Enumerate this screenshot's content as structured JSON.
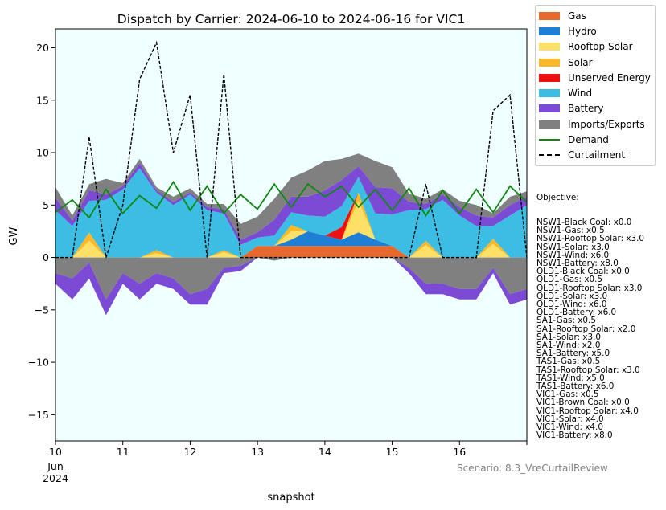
{
  "chart_data": {
    "type": "area",
    "title": "Dispatch by Carrier: 2024-06-10 to 2024-06-16 for VIC1",
    "xlabel": "snapshot",
    "ylabel": "GW",
    "xlim": [
      10,
      17
    ],
    "ylim": [
      -17.5,
      21.8
    ],
    "x_ticks": [
      10,
      11,
      12,
      13,
      14,
      15,
      16,
      17
    ],
    "x_tick_labels": [
      "10",
      "11",
      "12",
      "13",
      "14",
      "15",
      "16",
      ""
    ],
    "x_tick_sublabels": [
      "Jun",
      "2024"
    ],
    "y_ticks": [
      -15,
      -10,
      -5,
      0,
      5,
      10,
      15,
      20
    ],
    "y_tick_labels": [
      "−15",
      "−10",
      "−5",
      "0",
      "5",
      "10",
      "15",
      "20"
    ],
    "legend_position": "outside-top-right",
    "background_color": "#f0ffff",
    "x": [
      10.0,
      10.25,
      10.5,
      10.75,
      11.0,
      11.25,
      11.5,
      11.75,
      12.0,
      12.25,
      12.5,
      12.75,
      13.0,
      13.25,
      13.5,
      13.75,
      14.0,
      14.25,
      14.5,
      14.75,
      15.0,
      15.25,
      15.5,
      15.75,
      16.0,
      16.25,
      16.5,
      16.75,
      17.0
    ],
    "series": [
      {
        "name": "Gas",
        "color": "#e8692e",
        "values": [
          0,
          0,
          0,
          0,
          0,
          0,
          0,
          0,
          0,
          0,
          0,
          0,
          1.1,
          1.1,
          1.1,
          1.1,
          1.1,
          1.1,
          1.1,
          1.1,
          1.1,
          0,
          0,
          0,
          0,
          0,
          0,
          0,
          0
        ]
      },
      {
        "name": "Hydro",
        "color": "#1f7fd4",
        "values": [
          0,
          0,
          0,
          0,
          0,
          0,
          0,
          0,
          0,
          0,
          0,
          0,
          0,
          0,
          0.6,
          1.4,
          1.0,
          0.6,
          1.3,
          0.6,
          0,
          0,
          0,
          0,
          0,
          0,
          0,
          0,
          0
        ]
      },
      {
        "name": "Rooftop Solar",
        "color": "#ffe066",
        "values": [
          0,
          0,
          1.6,
          0,
          0,
          0,
          0.4,
          0,
          0,
          0,
          0.5,
          0,
          0,
          0,
          0.8,
          0,
          0,
          0,
          3.0,
          0,
          0,
          0,
          1.2,
          0,
          0,
          0,
          1.3,
          0,
          0
        ]
      },
      {
        "name": "Solar",
        "color": "#ffb828",
        "values": [
          0,
          0,
          0.8,
          0,
          0,
          0,
          0.3,
          0,
          0,
          0,
          0.2,
          0,
          0,
          0,
          0.6,
          0,
          0,
          0,
          0.8,
          0,
          0,
          0,
          0.4,
          0,
          0,
          0,
          0.5,
          0,
          0
        ]
      },
      {
        "name": "Unserved Energy",
        "color": "#ee1111",
        "values": [
          0,
          0,
          0,
          0,
          0,
          0,
          0,
          0,
          0,
          0,
          0,
          0,
          0,
          0,
          0,
          0,
          0,
          1.2,
          0,
          0,
          0,
          0,
          0,
          0,
          0,
          0,
          0,
          0,
          0
        ]
      },
      {
        "name": "Wind",
        "color": "#3bbde4",
        "values": [
          4.5,
          3.0,
          3.0,
          5.5,
          6.5,
          8.5,
          5.5,
          5.0,
          6.0,
          4.5,
          3.5,
          1.2,
          0.8,
          1.0,
          1.2,
          1.5,
          1.8,
          2.0,
          1.5,
          2.5,
          3.0,
          4.5,
          3.0,
          5.5,
          4.0,
          3.0,
          1.2,
          4.0,
          5.0
        ]
      },
      {
        "name": "Battery",
        "color": "#7b4bd6",
        "values": [
          1.2,
          0.5,
          1.0,
          0.5,
          0.3,
          0.5,
          0.2,
          0.3,
          0.2,
          0.3,
          0.4,
          0.5,
          0.5,
          1.5,
          1.5,
          1.8,
          2.5,
          2.5,
          1.0,
          2.5,
          2.5,
          0.8,
          0.5,
          0.5,
          0.8,
          1.0,
          0.8,
          1.0,
          0.8
        ]
      },
      {
        "name": "Imports/Exports",
        "color": "#808080",
        "values": [
          1.0,
          0.5,
          0.6,
          1.5,
          0.3,
          0.4,
          0.3,
          0.5,
          0.4,
          0.3,
          0.5,
          1.5,
          1.5,
          2.0,
          1.8,
          2.5,
          2.8,
          2.0,
          1.2,
          2.5,
          2.0,
          0.8,
          0.5,
          0.5,
          0.6,
          1.0,
          0.4,
          0.8,
          0.5
        ]
      }
    ],
    "negative_series": [
      {
        "name": "Imports/Exports",
        "color": "#808080",
        "values": [
          -1.5,
          -2.0,
          -0.5,
          -4.0,
          -1.5,
          -2.5,
          -1.5,
          -2.0,
          -3.5,
          -3.0,
          -1.0,
          -0.8,
          0,
          -0.3,
          0,
          0,
          0,
          0,
          0,
          0,
          0,
          -1.0,
          -2.5,
          -2.5,
          -3.0,
          -3.0,
          -1.0,
          -3.5,
          -3.0
        ]
      },
      {
        "name": "Battery",
        "color": "#7b4bd6",
        "values": [
          -1.0,
          -2.0,
          -1.5,
          -1.5,
          -1.0,
          -1.5,
          -1.0,
          -1.0,
          -1.0,
          -1.5,
          -0.5,
          -0.5,
          0,
          0,
          0,
          0,
          0,
          0,
          0,
          0,
          0,
          -0.5,
          -1.0,
          -1.0,
          -1.0,
          -1.0,
          -0.5,
          -1.0,
          -1.0
        ]
      }
    ],
    "lines": [
      {
        "name": "Demand",
        "color": "#118811",
        "dash": "solid",
        "values": [
          4.3,
          5.5,
          3.8,
          6.5,
          4.2,
          5.9,
          4.7,
          7.2,
          4.5,
          6.8,
          4.2,
          6.0,
          4.6,
          7.0,
          4.8,
          7.0,
          5.8,
          6.8,
          4.8,
          6.5,
          4.5,
          6.6,
          4.0,
          6.4,
          4.2,
          6.5,
          4.3,
          6.8,
          5.3
        ]
      },
      {
        "name": "Curtailment",
        "color": "#000000",
        "dash": "dashed",
        "values": [
          0,
          0,
          11.5,
          0,
          5.0,
          17.0,
          20.5,
          10.0,
          15.5,
          0,
          17.5,
          0,
          0,
          0,
          0,
          0,
          0,
          0,
          0,
          0,
          0,
          0,
          7.0,
          0,
          0,
          0,
          14.0,
          15.5,
          0
        ]
      }
    ],
    "legend": [
      "Gas",
      "Hydro",
      "Rooftop Solar",
      "Solar",
      "Unserved Energy",
      "Wind",
      "Battery",
      "Imports/Exports",
      "Demand",
      "Curtailment"
    ],
    "objective": {
      "title": "Objective:",
      "items": [
        "NSW1-Black Coal: x0.0",
        "NSW1-Gas: x0.5",
        "NSW1-Rooftop Solar: x3.0",
        "NSW1-Solar: x3.0",
        "NSW1-Wind: x6.0",
        "NSW1-Battery: x8.0",
        "QLD1-Black Coal: x0.0",
        "QLD1-Gas: x0.5",
        "QLD1-Rooftop Solar: x3.0",
        "QLD1-Solar: x3.0",
        "QLD1-Wind: x6.0",
        "QLD1-Battery: x6.0",
        "SA1-Gas: x0.5",
        "SA1-Rooftop Solar: x2.0",
        "SA1-Solar: x3.0",
        "SA1-Wind: x2.0",
        "SA1-Battery: x5.0",
        "TAS1-Gas: x0.5",
        "TAS1-Rooftop Solar: x3.0",
        "TAS1-Wind: x5.0",
        "TAS1-Battery: x6.0",
        "VIC1-Gas: x0.5",
        "VIC1-Brown Coal: x0.0",
        "VIC1-Rooftop Solar: x4.0",
        "VIC1-Solar: x4.0",
        "VIC1-Wind: x4.0",
        "VIC1-Battery: x8.0"
      ]
    },
    "scenario": "Scenario: 8.3_VreCurtailReview"
  }
}
